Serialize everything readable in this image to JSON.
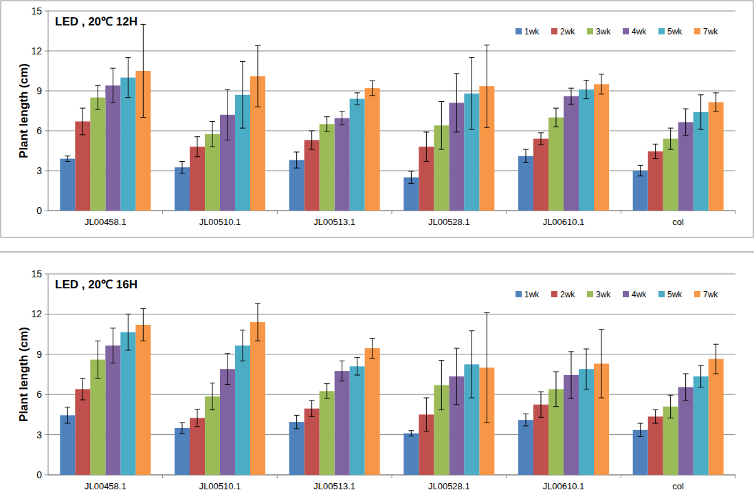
{
  "chart_data": [
    {
      "type": "bar",
      "title": "LED , 20℃ 12H",
      "y_label": "Plant length (cm)",
      "categories": [
        "JL00458.1",
        "JL00510.1",
        "JL00513.1",
        "JL00528.1",
        "JL00610.1",
        "col"
      ],
      "series": [
        {
          "name": "1wk",
          "color": "#4f81bd",
          "values": [
            3.9,
            3.25,
            3.8,
            2.5,
            4.1,
            3.0
          ],
          "errors": [
            0.2,
            0.45,
            0.6,
            0.45,
            0.5,
            0.4
          ]
        },
        {
          "name": "2wk",
          "color": "#c0504d",
          "values": [
            6.7,
            4.8,
            5.3,
            4.8,
            5.4,
            4.45
          ],
          "errors": [
            1.0,
            0.75,
            0.7,
            1.1,
            0.45,
            0.55
          ]
        },
        {
          "name": "3wk",
          "color": "#9bbb59",
          "values": [
            8.5,
            5.75,
            6.5,
            6.4,
            7.0,
            5.4
          ],
          "errors": [
            0.9,
            0.95,
            0.55,
            1.8,
            0.7,
            0.8
          ]
        },
        {
          "name": "4wk",
          "color": "#8064a2",
          "values": [
            9.4,
            7.2,
            6.95,
            8.1,
            8.6,
            6.65
          ],
          "errors": [
            1.3,
            1.9,
            0.5,
            2.2,
            0.6,
            1.0
          ]
        },
        {
          "name": "5wk",
          "color": "#4bacc6",
          "values": [
            10.0,
            8.7,
            8.4,
            8.8,
            9.1,
            7.4
          ],
          "errors": [
            1.5,
            2.5,
            0.45,
            2.7,
            0.7,
            1.3
          ]
        },
        {
          "name": "7wk",
          "color": "#f79646",
          "values": [
            10.5,
            10.1,
            9.2,
            9.35,
            9.5,
            8.15
          ],
          "errors": [
            3.5,
            2.3,
            0.55,
            3.1,
            0.75,
            0.7
          ]
        }
      ],
      "ylim": [
        0,
        15
      ],
      "yticks": [
        0,
        3,
        6,
        9,
        12,
        15
      ],
      "grid": true,
      "legend": "top-right"
    },
    {
      "type": "bar",
      "title": "LED , 20℃ 16H",
      "y_label": "Plant length (cm)",
      "categories": [
        "JL00458.1",
        "JL00510.1",
        "JL00513.1",
        "JL00528.1",
        "JL00610.1",
        "col"
      ],
      "series": [
        {
          "name": "1wk",
          "color": "#4f81bd",
          "values": [
            4.45,
            3.5,
            3.95,
            3.1,
            4.1,
            3.35
          ],
          "errors": [
            0.6,
            0.4,
            0.5,
            0.2,
            0.45,
            0.5
          ]
        },
        {
          "name": "2wk",
          "color": "#c0504d",
          "values": [
            6.4,
            4.25,
            4.95,
            4.5,
            5.25,
            4.35
          ],
          "errors": [
            0.8,
            0.65,
            0.6,
            1.25,
            0.95,
            0.5
          ]
        },
        {
          "name": "3wk",
          "color": "#9bbb59",
          "values": [
            8.6,
            5.85,
            6.25,
            6.7,
            6.4,
            5.1
          ],
          "errors": [
            1.4,
            1.0,
            0.55,
            1.85,
            1.3,
            0.85
          ]
        },
        {
          "name": "4wk",
          "color": "#8064a2",
          "values": [
            9.65,
            7.9,
            7.75,
            7.35,
            7.45,
            6.55
          ],
          "errors": [
            1.3,
            1.15,
            0.75,
            2.1,
            1.75,
            1.0
          ]
        },
        {
          "name": "5wk",
          "color": "#4bacc6",
          "values": [
            10.65,
            9.65,
            8.1,
            8.25,
            7.9,
            7.35
          ],
          "errors": [
            1.35,
            1.15,
            0.65,
            2.5,
            1.5,
            0.8
          ]
        },
        {
          "name": "7wk",
          "color": "#f79646",
          "values": [
            11.2,
            11.4,
            9.45,
            8.0,
            8.3,
            8.65
          ],
          "errors": [
            1.2,
            1.4,
            0.75,
            4.1,
            2.55,
            1.1
          ]
        }
      ],
      "ylim": [
        0,
        15
      ],
      "yticks": [
        0,
        3,
        6,
        9,
        12,
        15
      ],
      "grid": true,
      "legend": "top-right"
    }
  ]
}
